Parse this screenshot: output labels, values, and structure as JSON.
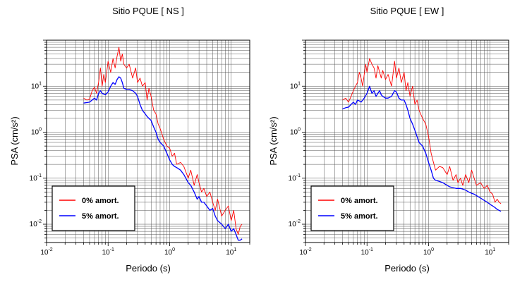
{
  "chart_data": [
    {
      "type": "line",
      "title": "Sitio PQUE [ NS ]",
      "xlabel": "Periodo (s)",
      "ylabel": "PSA (cm/s²)",
      "xscale": "log",
      "yscale": "log",
      "xlim": [
        0.01,
        20
      ],
      "ylim": [
        0.004,
        100
      ],
      "xticks": [
        {
          "base": "10",
          "exp": "-2",
          "value": 0.01
        },
        {
          "base": "10",
          "exp": "-1",
          "value": 0.1
        },
        {
          "base": "10",
          "exp": "0",
          "value": 1
        },
        {
          "base": "10",
          "exp": "1",
          "value": 10
        }
      ],
      "yticks": [
        {
          "base": "10",
          "exp": "-2",
          "value": 0.01
        },
        {
          "base": "10",
          "exp": "-1",
          "value": 0.1
        },
        {
          "base": "10",
          "exp": "0",
          "value": 1
        },
        {
          "base": "10",
          "exp": "1",
          "value": 10
        }
      ],
      "grid": true,
      "legend_position": "bottom-left",
      "series": [
        {
          "name": "0% amort.",
          "color": "#ff0000",
          "x": [
            0.04,
            0.045,
            0.05,
            0.055,
            0.06,
            0.065,
            0.07,
            0.075,
            0.08,
            0.085,
            0.09,
            0.095,
            0.1,
            0.11,
            0.12,
            0.13,
            0.14,
            0.15,
            0.16,
            0.17,
            0.18,
            0.2,
            0.22,
            0.25,
            0.28,
            0.3,
            0.33,
            0.36,
            0.4,
            0.43,
            0.46,
            0.5,
            0.55,
            0.6,
            0.65,
            0.7,
            0.8,
            0.9,
            1.0,
            1.1,
            1.2,
            1.3,
            1.5,
            1.7,
            2.0,
            2.2,
            2.5,
            2.8,
            3.0,
            3.3,
            3.6,
            4.0,
            4.5,
            5.0,
            5.5,
            6.0,
            7.0,
            8.0,
            9.0,
            10.0,
            11.0,
            12.0,
            13.0,
            14.0,
            15.0
          ],
          "y": [
            5.5,
            5.0,
            5.2,
            8.0,
            9.5,
            7.0,
            12.0,
            25.0,
            10.0,
            18.0,
            12.0,
            20.0,
            35.0,
            20.0,
            40.0,
            25.0,
            45.0,
            70.0,
            35.0,
            50.0,
            30.0,
            25.0,
            30.0,
            15.0,
            25.0,
            12.0,
            15.0,
            10.0,
            12.0,
            5.0,
            9.0,
            6.0,
            3.0,
            2.5,
            1.5,
            1.2,
            0.7,
            0.5,
            0.45,
            0.3,
            0.35,
            0.2,
            0.22,
            0.18,
            0.1,
            0.15,
            0.07,
            0.12,
            0.08,
            0.05,
            0.06,
            0.04,
            0.05,
            0.03,
            0.02,
            0.035,
            0.015,
            0.02,
            0.025,
            0.012,
            0.02,
            0.008,
            0.006,
            0.009,
            0.01
          ]
        },
        {
          "name": "5% amort.",
          "color": "#0000ff",
          "x": [
            0.04,
            0.045,
            0.05,
            0.055,
            0.06,
            0.065,
            0.07,
            0.075,
            0.08,
            0.09,
            0.1,
            0.11,
            0.12,
            0.13,
            0.14,
            0.15,
            0.16,
            0.17,
            0.18,
            0.2,
            0.22,
            0.25,
            0.28,
            0.3,
            0.33,
            0.36,
            0.4,
            0.43,
            0.46,
            0.5,
            0.55,
            0.6,
            0.65,
            0.7,
            0.8,
            0.9,
            1.0,
            1.1,
            1.2,
            1.3,
            1.5,
            1.7,
            2.0,
            2.2,
            2.5,
            2.8,
            3.0,
            3.3,
            3.6,
            4.0,
            4.5,
            5.0,
            5.5,
            6.0,
            7.0,
            8.0,
            9.0,
            10.0,
            11.0,
            12.0,
            13.0,
            14.0,
            15.0
          ],
          "y": [
            4.3,
            4.4,
            4.5,
            5.0,
            5.5,
            5.0,
            7.0,
            8.0,
            7.0,
            6.5,
            7.5,
            10.0,
            12.0,
            11.0,
            14.0,
            16.0,
            15.0,
            12.0,
            9.0,
            8.5,
            8.5,
            8.0,
            7.0,
            6.0,
            4.0,
            3.0,
            2.5,
            2.2,
            2.0,
            1.8,
            1.3,
            1.0,
            0.7,
            0.6,
            0.5,
            0.35,
            0.25,
            0.2,
            0.18,
            0.17,
            0.15,
            0.12,
            0.08,
            0.07,
            0.05,
            0.035,
            0.04,
            0.03,
            0.03,
            0.025,
            0.02,
            0.022,
            0.015,
            0.012,
            0.01,
            0.008,
            0.01,
            0.007,
            0.008,
            0.006,
            0.0045,
            0.0045,
            0.0048
          ]
        }
      ]
    },
    {
      "type": "line",
      "title": "Sitio PQUE [ EW ]",
      "xlabel": "Periodo (s)",
      "ylabel": "PSA (cm/s²)",
      "xscale": "log",
      "yscale": "log",
      "xlim": [
        0.01,
        20
      ],
      "ylim": [
        0.004,
        100
      ],
      "xticks": [
        {
          "base": "10",
          "exp": "-2",
          "value": 0.01
        },
        {
          "base": "10",
          "exp": "-1",
          "value": 0.1
        },
        {
          "base": "10",
          "exp": "0",
          "value": 1
        },
        {
          "base": "10",
          "exp": "1",
          "value": 10
        }
      ],
      "yticks": [
        {
          "base": "10",
          "exp": "-2",
          "value": 0.01
        },
        {
          "base": "10",
          "exp": "-1",
          "value": 0.1
        },
        {
          "base": "10",
          "exp": "0",
          "value": 1
        },
        {
          "base": "10",
          "exp": "1",
          "value": 10
        }
      ],
      "grid": true,
      "legend_position": "bottom-left",
      "series": [
        {
          "name": "0% amort.",
          "color": "#ff0000",
          "x": [
            0.04,
            0.045,
            0.05,
            0.055,
            0.06,
            0.065,
            0.07,
            0.075,
            0.08,
            0.085,
            0.09,
            0.095,
            0.1,
            0.11,
            0.12,
            0.13,
            0.14,
            0.15,
            0.16,
            0.17,
            0.18,
            0.2,
            0.22,
            0.25,
            0.28,
            0.3,
            0.33,
            0.36,
            0.4,
            0.43,
            0.46,
            0.5,
            0.55,
            0.6,
            0.65,
            0.7,
            0.8,
            0.9,
            1.0,
            1.1,
            1.2,
            1.3,
            1.5,
            1.7,
            2.0,
            2.2,
            2.5,
            2.8,
            3.0,
            3.3,
            3.6,
            4.0,
            4.5,
            5.0,
            5.5,
            6.0,
            7.0,
            8.0,
            9.0,
            10.0,
            11.0,
            12.0,
            13.0,
            14.0,
            15.0
          ],
          "y": [
            5.0,
            5.5,
            4.5,
            6.0,
            8.0,
            10.0,
            12.0,
            20.0,
            15.0,
            10.0,
            18.0,
            30.0,
            20.0,
            40.0,
            30.0,
            25.0,
            15.0,
            28.0,
            20.0,
            15.0,
            22.0,
            14.0,
            18.0,
            10.0,
            35.0,
            15.0,
            25.0,
            12.0,
            20.0,
            8.0,
            12.0,
            6.0,
            10.0,
            4.0,
            5.0,
            3.0,
            2.0,
            1.5,
            0.8,
            0.35,
            0.22,
            0.15,
            0.18,
            0.17,
            0.12,
            0.18,
            0.09,
            0.12,
            0.08,
            0.1,
            0.07,
            0.12,
            0.08,
            0.15,
            0.1,
            0.07,
            0.08,
            0.06,
            0.07,
            0.05,
            0.045,
            0.03,
            0.035,
            0.03,
            0.028
          ]
        },
        {
          "name": "5% amort.",
          "color": "#0000ff",
          "x": [
            0.04,
            0.045,
            0.05,
            0.055,
            0.06,
            0.065,
            0.07,
            0.075,
            0.08,
            0.09,
            0.1,
            0.11,
            0.12,
            0.13,
            0.14,
            0.15,
            0.16,
            0.17,
            0.18,
            0.2,
            0.22,
            0.25,
            0.28,
            0.3,
            0.33,
            0.36,
            0.4,
            0.43,
            0.46,
            0.5,
            0.55,
            0.6,
            0.65,
            0.7,
            0.8,
            0.9,
            1.0,
            1.1,
            1.2,
            1.3,
            1.5,
            1.7,
            2.0,
            2.2,
            2.5,
            2.8,
            3.0,
            3.3,
            3.6,
            4.0,
            4.5,
            5.0,
            5.5,
            6.0,
            7.0,
            8.0,
            9.0,
            10.0,
            11.0,
            12.0,
            13.0,
            14.0,
            15.0
          ],
          "y": [
            3.2,
            3.4,
            3.5,
            4.0,
            4.5,
            4.0,
            5.0,
            4.8,
            4.5,
            5.5,
            7.0,
            10.0,
            7.0,
            8.0,
            6.0,
            7.0,
            8.0,
            6.5,
            6.0,
            5.5,
            5.5,
            6.0,
            8.0,
            7.5,
            5.5,
            5.0,
            5.0,
            4.0,
            3.0,
            2.0,
            1.5,
            1.1,
            0.8,
            0.6,
            0.5,
            0.35,
            0.22,
            0.15,
            0.1,
            0.09,
            0.085,
            0.08,
            0.07,
            0.065,
            0.062,
            0.06,
            0.06,
            0.06,
            0.058,
            0.055,
            0.05,
            0.047,
            0.045,
            0.042,
            0.037,
            0.033,
            0.03,
            0.027,
            0.025,
            0.023,
            0.021,
            0.02,
            0.019
          ]
        }
      ]
    }
  ]
}
